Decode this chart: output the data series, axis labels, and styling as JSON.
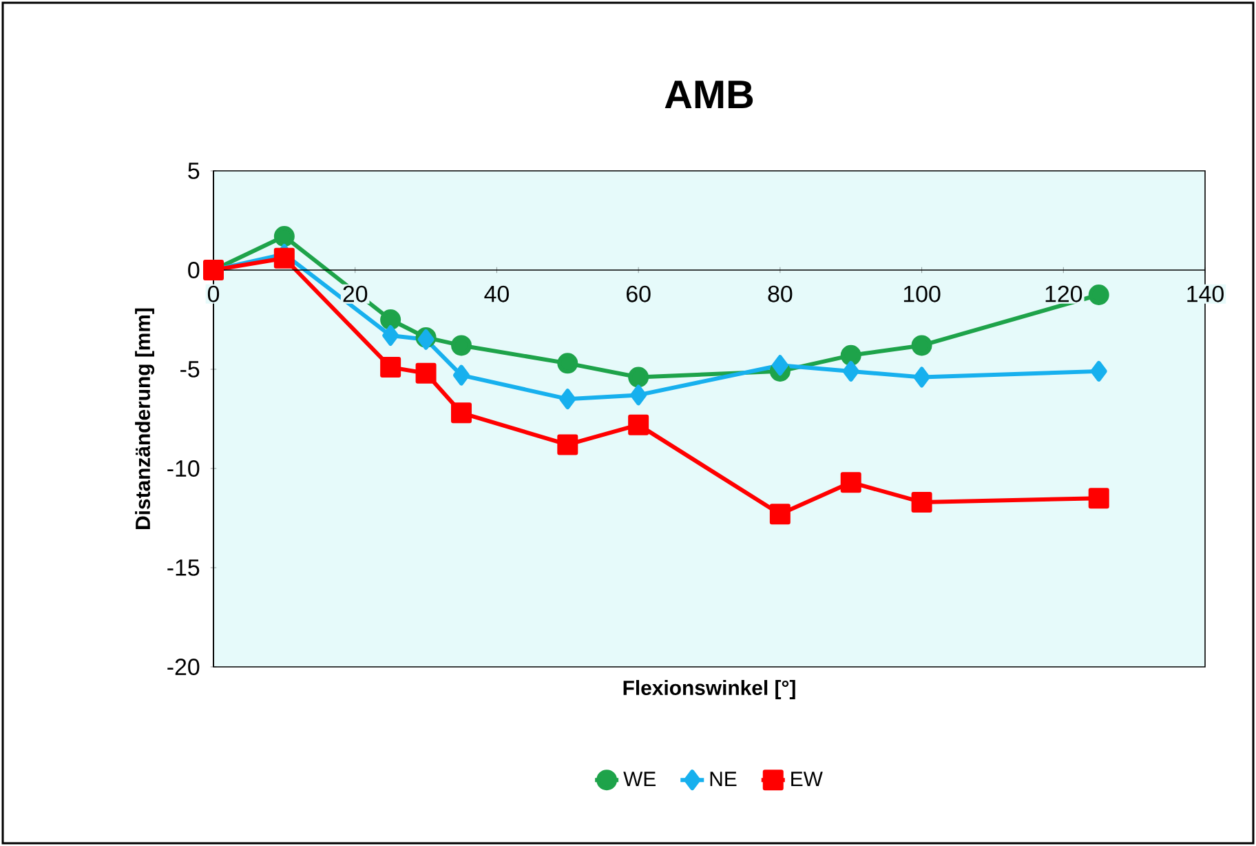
{
  "chart_data": {
    "type": "line",
    "title": "AMB",
    "xlabel": "Flexionswinkel [°]",
    "ylabel": "Distanzänderung [mm]",
    "x": [
      0,
      10,
      25,
      30,
      35,
      50,
      60,
      80,
      90,
      100,
      125
    ],
    "series": [
      {
        "name": "WE",
        "color": "#1ea34a",
        "marker": "circle",
        "values": [
          0,
          1.7,
          -2.5,
          -3.4,
          -3.8,
          -4.7,
          -5.4,
          -5.1,
          -4.3,
          -3.8,
          -1.25
        ]
      },
      {
        "name": "NE",
        "color": "#17b0ee",
        "marker": "diamond",
        "values": [
          0,
          0.8,
          -3.3,
          -3.5,
          -5.3,
          -6.5,
          -6.3,
          -4.8,
          -5.1,
          -5.4,
          -5.1
        ]
      },
      {
        "name": "EW",
        "color": "#ff0000",
        "marker": "square",
        "values": [
          0,
          0.6,
          -4.9,
          -5.2,
          -7.2,
          -8.8,
          -7.8,
          -12.3,
          -10.7,
          -11.7,
          -11.5
        ]
      }
    ],
    "xlim": [
      0,
      140
    ],
    "ylim": [
      -20,
      5
    ],
    "xticks": [
      0,
      20,
      40,
      60,
      80,
      100,
      120,
      140
    ],
    "yticks": [
      -20,
      -15,
      -10,
      -5,
      0,
      5
    ],
    "grid": false,
    "legend": "bottom",
    "line_style": "solid"
  }
}
